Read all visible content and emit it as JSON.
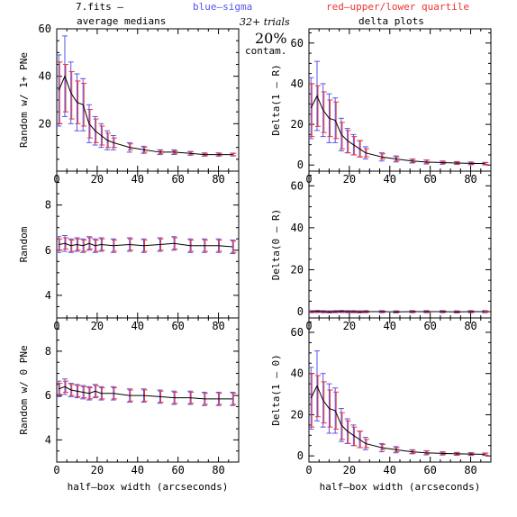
{
  "header": {
    "file_label": "7.fits  –",
    "blue_label": "blue–sigma",
    "red_label": "red–upper/lower quartile",
    "left_title": "average medians",
    "right_title": "delta plots",
    "trials": "32+ trials",
    "contam_pct": "20%",
    "contam_word": "contam."
  },
  "colors": {
    "line": "#000000",
    "sigma": "#5555ee",
    "quartile": "#ee3333",
    "frame": "#000000"
  },
  "chart_data": [
    {
      "type": "line",
      "ylabel": "Random w/ 1+ PNe",
      "xlabel": "",
      "xlim": [
        0,
        90
      ],
      "ylim": [
        0,
        60
      ],
      "yticks": [
        20,
        40,
        60
      ],
      "xticks": [
        0,
        20,
        40,
        60,
        80
      ],
      "x": [
        1,
        4,
        7,
        10,
        13,
        16,
        19,
        22,
        25,
        28,
        36,
        43,
        51,
        58,
        66,
        73,
        80,
        87
      ],
      "y": [
        34,
        40,
        33,
        29,
        28,
        20,
        17,
        15,
        13,
        12,
        10,
        9,
        8,
        8,
        7.5,
        7,
        7,
        7
      ],
      "sigma": [
        15,
        17,
        13,
        12,
        11,
        8,
        6,
        5,
        4,
        3,
        2,
        1.5,
        1,
        1,
        0.8,
        0.7,
        0.7,
        0.6
      ],
      "quartile": [
        [
          20,
          46
        ],
        [
          25,
          45
        ],
        [
          22,
          42
        ],
        [
          20,
          38
        ],
        [
          19,
          37
        ],
        [
          14,
          26
        ],
        [
          12,
          22
        ],
        [
          11,
          19
        ],
        [
          10,
          16
        ],
        [
          10,
          14
        ],
        [
          9,
          11.5
        ],
        [
          8,
          10
        ],
        [
          7.3,
          8.8
        ],
        [
          7.3,
          8.6
        ],
        [
          6.9,
          8.1
        ],
        [
          6.5,
          7.5
        ],
        [
          6.5,
          7.5
        ],
        [
          6.5,
          7.5
        ]
      ]
    },
    {
      "type": "line",
      "ylabel": "Random",
      "xlabel": "",
      "xlim": [
        0,
        90
      ],
      "ylim": [
        3,
        9.5
      ],
      "yticks": [
        4,
        6,
        8
      ],
      "xticks": [
        0,
        20,
        40,
        60,
        80
      ],
      "x": [
        1,
        4,
        7,
        10,
        13,
        16,
        19,
        22,
        28,
        36,
        43,
        51,
        58,
        66,
        73,
        80,
        87
      ],
      "y": [
        6.25,
        6.3,
        6.2,
        6.25,
        6.2,
        6.3,
        6.2,
        6.25,
        6.2,
        6.25,
        6.2,
        6.25,
        6.3,
        6.2,
        6.2,
        6.2,
        6.15
      ],
      "sigma": [
        0.35,
        0.35,
        0.3,
        0.3,
        0.3,
        0.3,
        0.3,
        0.3,
        0.3,
        0.3,
        0.3,
        0.3,
        0.3,
        0.3,
        0.3,
        0.3,
        0.3
      ],
      "quartile": [
        [
          6.0,
          6.5
        ],
        [
          6.05,
          6.55
        ],
        [
          5.95,
          6.45
        ],
        [
          6.0,
          6.5
        ],
        [
          5.95,
          6.45
        ],
        [
          6.05,
          6.55
        ],
        [
          5.95,
          6.45
        ],
        [
          6.0,
          6.5
        ],
        [
          5.95,
          6.45
        ],
        [
          6.0,
          6.5
        ],
        [
          5.95,
          6.45
        ],
        [
          6.0,
          6.5
        ],
        [
          6.05,
          6.55
        ],
        [
          5.95,
          6.45
        ],
        [
          5.95,
          6.45
        ],
        [
          5.95,
          6.45
        ],
        [
          5.9,
          6.4
        ]
      ]
    },
    {
      "type": "line",
      "ylabel": "Random w/ 0 PNe",
      "xlabel": "half–box width (arcseconds)",
      "xlim": [
        0,
        90
      ],
      "ylim": [
        3,
        9.5
      ],
      "yticks": [
        4,
        6,
        8
      ],
      "xticks": [
        0,
        20,
        40,
        60,
        80
      ],
      "x": [
        1,
        4,
        7,
        10,
        13,
        16,
        19,
        22,
        28,
        36,
        43,
        51,
        58,
        66,
        73,
        80,
        87
      ],
      "y": [
        6.3,
        6.4,
        6.25,
        6.2,
        6.15,
        6.1,
        6.2,
        6.1,
        6.1,
        6.0,
        6.0,
        5.95,
        5.9,
        5.9,
        5.85,
        5.85,
        5.85
      ],
      "sigma": [
        0.35,
        0.35,
        0.3,
        0.3,
        0.3,
        0.3,
        0.3,
        0.3,
        0.3,
        0.3,
        0.3,
        0.3,
        0.3,
        0.3,
        0.3,
        0.3,
        0.3
      ],
      "quartile": [
        [
          6.05,
          6.55
        ],
        [
          6.15,
          6.65
        ],
        [
          6.0,
          6.5
        ],
        [
          5.95,
          6.45
        ],
        [
          5.9,
          6.4
        ],
        [
          5.85,
          6.35
        ],
        [
          5.95,
          6.45
        ],
        [
          5.85,
          6.35
        ],
        [
          5.85,
          6.35
        ],
        [
          5.75,
          6.25
        ],
        [
          5.75,
          6.25
        ],
        [
          5.7,
          6.2
        ],
        [
          5.65,
          6.15
        ],
        [
          5.65,
          6.15
        ],
        [
          5.6,
          6.1
        ],
        [
          5.6,
          6.1
        ],
        [
          5.6,
          6.1
        ]
      ]
    },
    {
      "type": "line",
      "ylabel": "Delta(1 – R)",
      "xlabel": "",
      "xlim": [
        0,
        90
      ],
      "ylim": [
        -3,
        67
      ],
      "yticks": [
        0,
        20,
        40,
        60
      ],
      "xticks": [
        0,
        20,
        40,
        60,
        80
      ],
      "x": [
        1,
        4,
        7,
        10,
        13,
        16,
        19,
        22,
        25,
        28,
        36,
        43,
        51,
        58,
        66,
        73,
        80,
        87
      ],
      "y": [
        28,
        34,
        27,
        23,
        22,
        15,
        12,
        10,
        8,
        6,
        4,
        3,
        2,
        1.5,
        1.2,
        1,
        0.8,
        0.7
      ],
      "sigma": [
        15,
        17,
        13,
        12,
        11,
        8,
        6,
        5,
        4,
        3,
        2,
        1.5,
        1,
        1,
        0.8,
        0.7,
        0.7,
        0.6
      ],
      "quartile": [
        [
          14,
          40
        ],
        [
          19,
          39
        ],
        [
          16,
          36
        ],
        [
          14,
          32
        ],
        [
          13,
          31
        ],
        [
          8,
          21
        ],
        [
          6,
          17
        ],
        [
          5,
          14
        ],
        [
          4,
          12
        ],
        [
          4,
          8
        ],
        [
          3,
          5.5
        ],
        [
          2,
          4
        ],
        [
          1.3,
          2.8
        ],
        [
          1,
          2.4
        ],
        [
          0.8,
          1.8
        ],
        [
          0.5,
          1.5
        ],
        [
          0.4,
          1.3
        ],
        [
          0.3,
          1.2
        ]
      ]
    },
    {
      "type": "line",
      "ylabel": "Delta(0 – R)",
      "xlabel": "",
      "xlim": [
        0,
        90
      ],
      "ylim": [
        -3,
        67
      ],
      "yticks": [
        0,
        20,
        40,
        60
      ],
      "xticks": [
        0,
        20,
        40,
        60,
        80
      ],
      "x": [
        1,
        4,
        7,
        10,
        13,
        16,
        19,
        22,
        25,
        28,
        36,
        43,
        51,
        58,
        66,
        73,
        80,
        87
      ],
      "y": [
        0,
        0.1,
        0,
        -0.1,
        0,
        0.1,
        0,
        0,
        -0.1,
        0,
        0,
        -0.1,
        0,
        0,
        0,
        -0.1,
        0,
        0
      ],
      "sigma": [
        0.5,
        0.5,
        0.5,
        0.5,
        0.5,
        0.5,
        0.5,
        0.5,
        0.5,
        0.5,
        0.5,
        0.5,
        0.5,
        0.5,
        0.5,
        0.5,
        0.5,
        0.5
      ],
      "quartile": [
        [
          -0.3,
          0.3
        ],
        [
          -0.2,
          0.4
        ],
        [
          -0.3,
          0.3
        ],
        [
          -0.4,
          0.2
        ],
        [
          -0.3,
          0.3
        ],
        [
          -0.2,
          0.4
        ],
        [
          -0.3,
          0.3
        ],
        [
          -0.3,
          0.3
        ],
        [
          -0.4,
          0.2
        ],
        [
          -0.3,
          0.3
        ],
        [
          -0.3,
          0.3
        ],
        [
          -0.4,
          0.2
        ],
        [
          -0.3,
          0.3
        ],
        [
          -0.3,
          0.3
        ],
        [
          -0.3,
          0.3
        ],
        [
          -0.4,
          0.2
        ],
        [
          -0.3,
          0.3
        ],
        [
          -0.3,
          0.3
        ]
      ]
    },
    {
      "type": "line",
      "ylabel": "Delta(1 – 0)",
      "xlabel": "half–box width (arcseconds)",
      "xlim": [
        0,
        90
      ],
      "ylim": [
        -3,
        67
      ],
      "yticks": [
        0,
        20,
        40,
        60
      ],
      "xticks": [
        0,
        20,
        40,
        60,
        80
      ],
      "x": [
        1,
        4,
        7,
        10,
        13,
        16,
        19,
        22,
        25,
        28,
        36,
        43,
        51,
        58,
        66,
        73,
        80,
        87
      ],
      "y": [
        28,
        34,
        27,
        23,
        22,
        15,
        12,
        10,
        8,
        6,
        4,
        3,
        2,
        1.5,
        1.2,
        1,
        0.9,
        0.8
      ],
      "sigma": [
        15,
        17,
        13,
        12,
        11,
        8,
        6,
        5,
        4,
        3,
        2,
        1.5,
        1,
        1,
        0.8,
        0.7,
        0.7,
        0.6
      ],
      "quartile": [
        [
          14,
          40
        ],
        [
          19,
          39
        ],
        [
          16,
          36
        ],
        [
          14,
          32
        ],
        [
          13,
          31
        ],
        [
          8,
          21
        ],
        [
          6,
          17
        ],
        [
          5,
          14
        ],
        [
          4,
          12
        ],
        [
          4,
          8
        ],
        [
          3,
          5.5
        ],
        [
          2,
          4
        ],
        [
          1.3,
          2.8
        ],
        [
          1,
          2.4
        ],
        [
          0.8,
          1.8
        ],
        [
          0.5,
          1.5
        ],
        [
          0.5,
          1.4
        ],
        [
          0.4,
          1.3
        ]
      ]
    }
  ]
}
